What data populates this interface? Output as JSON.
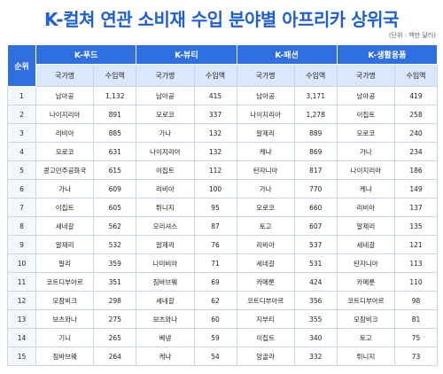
{
  "header": {
    "title": "K-컬쳐 연관 소비재 수입 분야별 아프리카 상위국",
    "unit": "(단위 : 백만 달러)"
  },
  "table": {
    "rank_header": "순위",
    "groups": [
      "K-푸드",
      "K-뷰티",
      "K-패션",
      "K-생활용품"
    ],
    "subheaders": [
      "국가명",
      "수입액"
    ],
    "rows": [
      [
        "1",
        "남아공",
        "1,132",
        "남아공",
        "415",
        "남아공",
        "3,171",
        "남아공",
        "419"
      ],
      [
        "2",
        "나이지리아",
        "891",
        "모로코",
        "337",
        "나이지리아",
        "1,278",
        "이집트",
        "258"
      ],
      [
        "3",
        "리비아",
        "885",
        "가나",
        "132",
        "알제리",
        "889",
        "모로코",
        "240"
      ],
      [
        "4",
        "모로코",
        "631",
        "나이지리아",
        "132",
        "케냐",
        "869",
        "가나",
        "234"
      ],
      [
        "5",
        "콩고민주공화국",
        "615",
        "이집트",
        "112",
        "탄자니아",
        "817",
        "나이지리아",
        "186"
      ],
      [
        "6",
        "가나",
        "609",
        "리비아",
        "100",
        "가나",
        "770",
        "케냐",
        "149"
      ],
      [
        "7",
        "이집트",
        "605",
        "튀니지",
        "95",
        "모로코",
        "660",
        "리비아",
        "137"
      ],
      [
        "8",
        "세네갈",
        "562",
        "모리셔스",
        "87",
        "토고",
        "607",
        "알제리",
        "135"
      ],
      [
        "9",
        "알제리",
        "532",
        "알제리",
        "76",
        "리비아",
        "537",
        "세네갈",
        "121"
      ],
      [
        "10",
        "말리",
        "359",
        "나미비아",
        "71",
        "세네갈",
        "531",
        "탄자니아",
        "113"
      ],
      [
        "11",
        "코트디부아르",
        "351",
        "짐바브웨",
        "69",
        "카메룬",
        "424",
        "카메룬",
        "110"
      ],
      [
        "12",
        "모잠비크",
        "298",
        "세네갈",
        "62",
        "코트디부아르",
        "356",
        "코트디부아르",
        "98"
      ],
      [
        "13",
        "보츠와나",
        "275",
        "보츠와나",
        "60",
        "지부티",
        "355",
        "모잠비크",
        "81"
      ],
      [
        "14",
        "기니",
        "265",
        "베냉",
        "59",
        "이집트",
        "340",
        "토고",
        "75"
      ],
      [
        "15",
        "짐바브웨",
        "264",
        "케냐",
        "54",
        "앙골라",
        "332",
        "튀니지",
        "73"
      ]
    ]
  }
}
